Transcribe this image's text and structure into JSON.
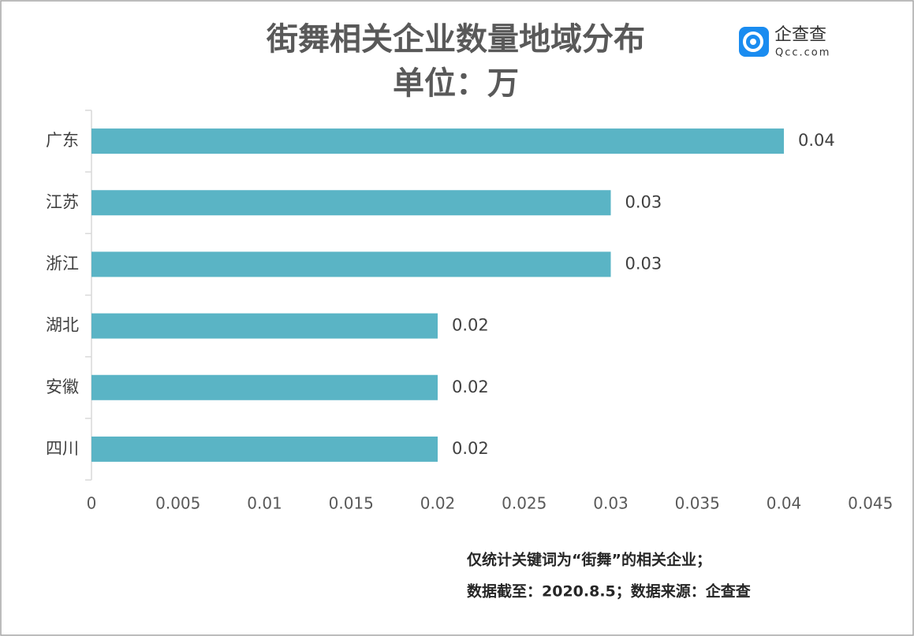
{
  "chart_data": {
    "type": "barh",
    "title": "街舞相关企业数量地域分布",
    "subtitle": "单位：万",
    "categories": [
      "广东",
      "江苏",
      "浙江",
      "湖北",
      "安徽",
      "四川"
    ],
    "values": [
      0.04,
      0.03,
      0.03,
      0.02,
      0.02,
      0.02
    ],
    "color": "#5ab4c5",
    "xlim": [
      0,
      0.045
    ],
    "xticks": [
      0,
      0.005,
      0.01,
      0.015,
      0.02,
      0.025,
      0.03,
      0.035,
      0.04,
      0.045
    ],
    "grid": false,
    "notes": [
      "仅统计关键词为“街舞”的相关企业；",
      "数据截至：2020.8.5；数据来源：企查查"
    ]
  },
  "logo": {
    "name": "企查查",
    "site": "Qcc.com"
  }
}
